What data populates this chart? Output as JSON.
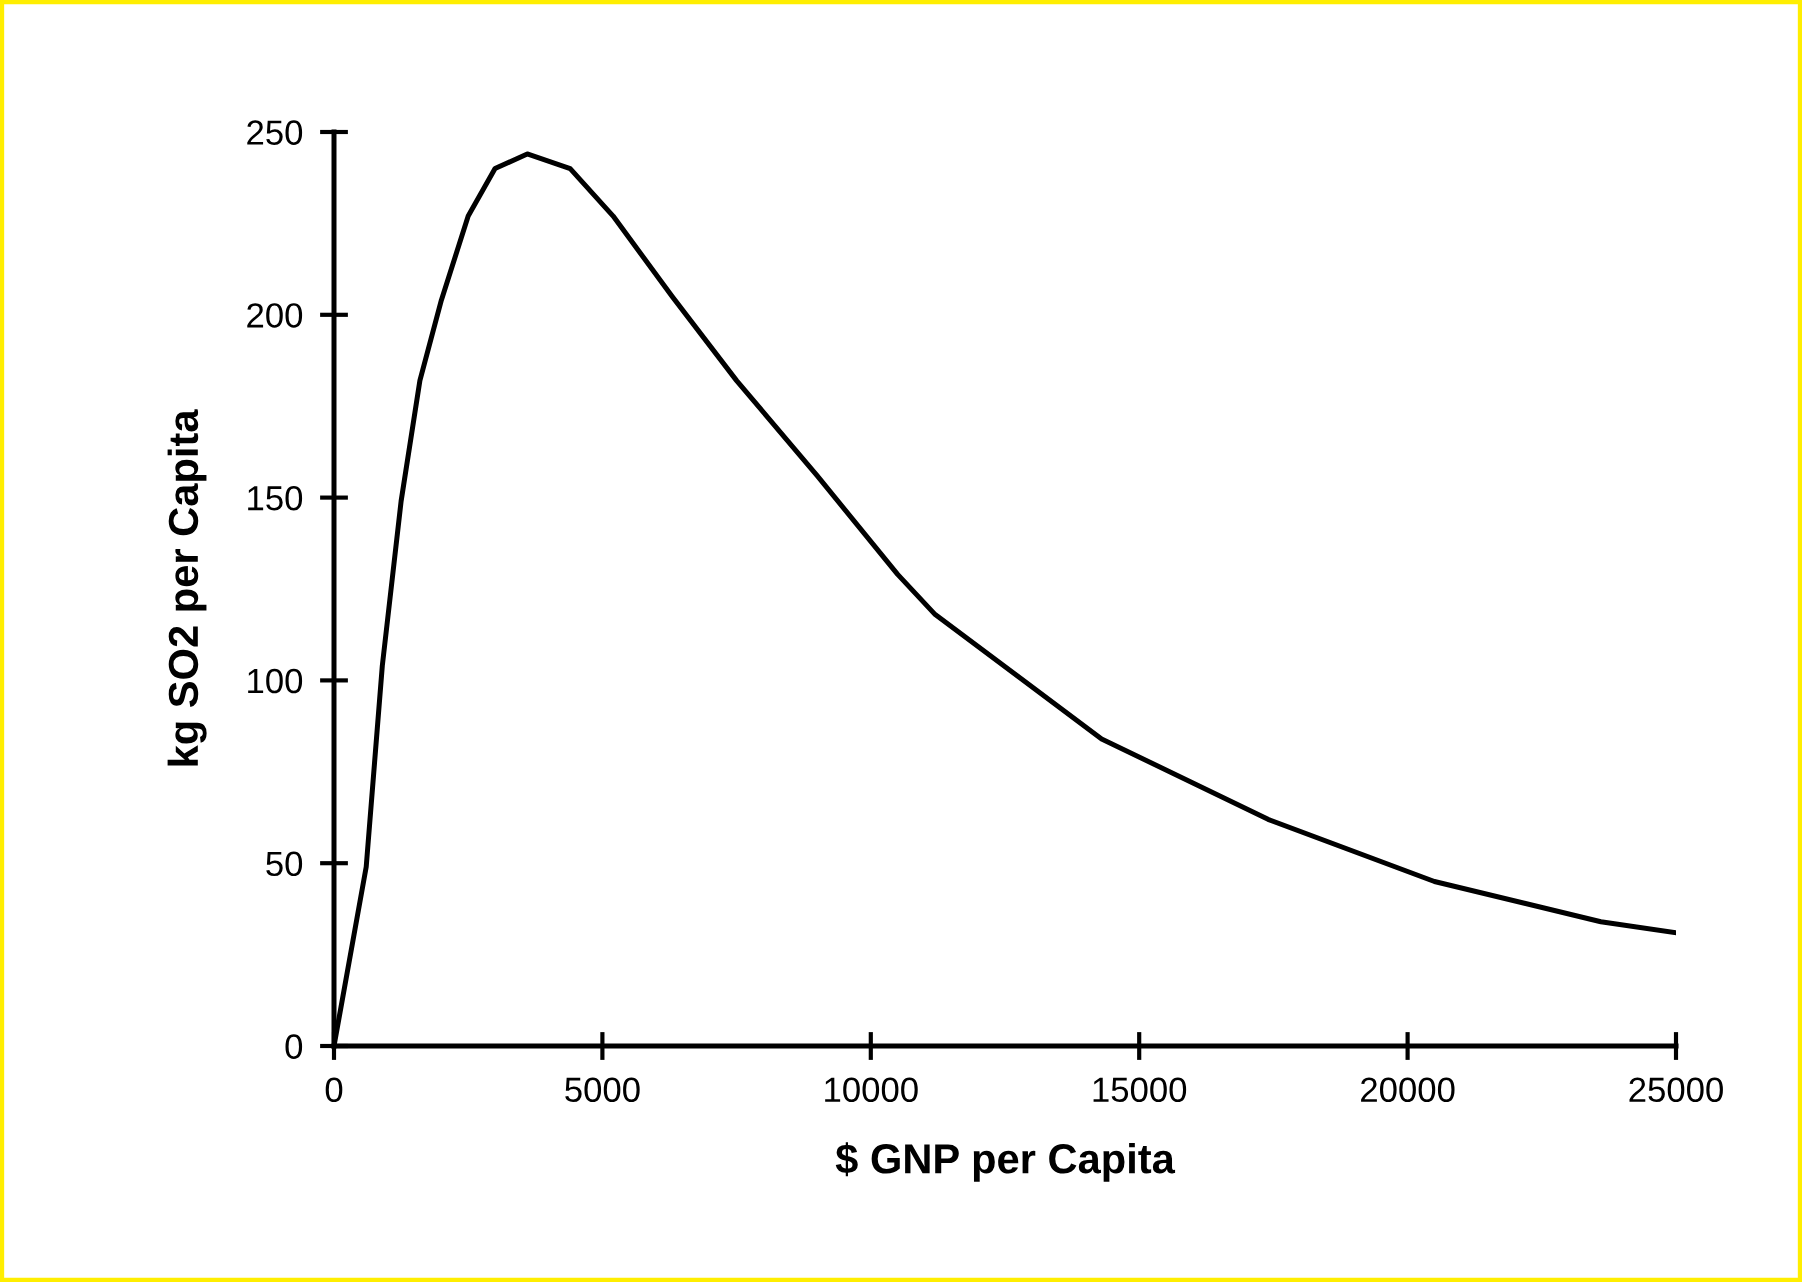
{
  "chart_data": {
    "type": "line",
    "xlabel": "$ GNP per Capita",
    "ylabel": "kg SO2 per Capita",
    "x": [
      0,
      600,
      900,
      1250,
      1600,
      2000,
      2500,
      3000,
      3600,
      4400,
      5200,
      6300,
      7500,
      9000,
      10500,
      11200,
      14300,
      17400,
      20500,
      23600,
      25000
    ],
    "series": [
      {
        "color": "#000000",
        "values": [
          0,
          49,
          104,
          149,
          182,
          204,
          227,
          240,
          244,
          240,
          227,
          205,
          182,
          156,
          129,
          118,
          84,
          62,
          45,
          34,
          31
        ]
      }
    ],
    "xlim": [
      0,
      25000
    ],
    "xticks": [
      0,
      5000,
      10000,
      15000,
      20000,
      25000
    ],
    "ylim": [
      0,
      250
    ],
    "yticks": [
      0,
      50,
      100,
      150,
      200,
      250
    ],
    "grid": false,
    "legend": false,
    "marker": "none",
    "line_style": "solid"
  }
}
